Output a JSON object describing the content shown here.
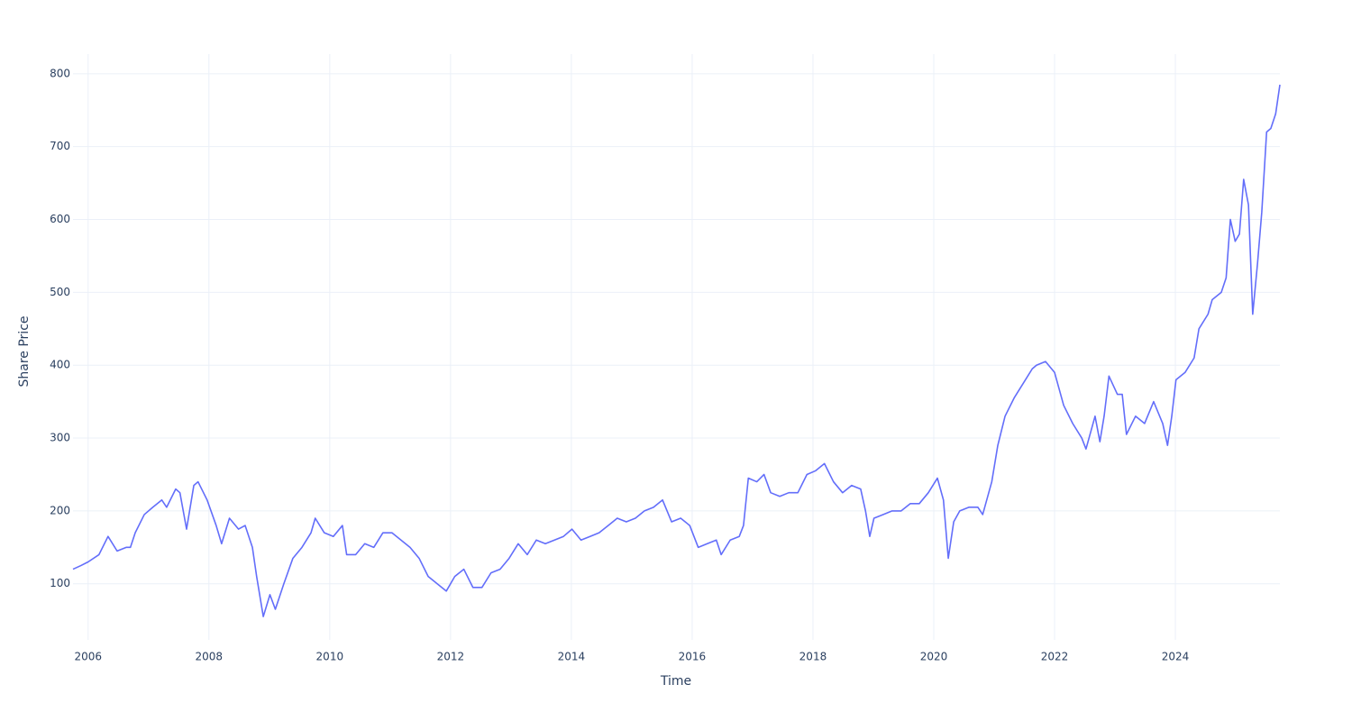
{
  "chart_data": {
    "type": "line",
    "x_label": "Time",
    "y_label": "Share Price",
    "xlim": [
      2005.75,
      2025.73
    ],
    "ylim": [
      23,
      827
    ],
    "xticks": [
      2006,
      2008,
      2010,
      2012,
      2014,
      2016,
      2018,
      2020,
      2022,
      2024
    ],
    "yticks": [
      100,
      200,
      300,
      400,
      500,
      600,
      700,
      800
    ],
    "grid": true,
    "x": [
      2005.75,
      2005.88,
      2006.0,
      2006.18,
      2006.33,
      2006.48,
      2006.63,
      2006.7,
      2006.78,
      2006.93,
      2007.07,
      2007.22,
      2007.3,
      2007.45,
      2007.52,
      2007.63,
      2007.75,
      2007.82,
      2007.97,
      2008.12,
      2008.21,
      2008.34,
      2008.49,
      2008.6,
      2008.72,
      2008.79,
      2008.9,
      2009.01,
      2009.1,
      2009.24,
      2009.39,
      2009.54,
      2009.69,
      2009.76,
      2009.91,
      2010.06,
      2010.21,
      2010.28,
      2010.43,
      2010.58,
      2010.73,
      2010.88,
      2011.03,
      2011.18,
      2011.33,
      2011.48,
      2011.63,
      2011.78,
      2011.93,
      2012.07,
      2012.22,
      2012.37,
      2012.52,
      2012.67,
      2012.82,
      2012.97,
      2013.12,
      2013.27,
      2013.42,
      2013.57,
      2013.72,
      2013.87,
      2014.01,
      2014.16,
      2014.31,
      2014.46,
      2014.61,
      2014.76,
      2014.91,
      2015.06,
      2015.21,
      2015.36,
      2015.51,
      2015.66,
      2015.81,
      2015.96,
      2016.1,
      2016.25,
      2016.4,
      2016.48,
      2016.63,
      2016.78,
      2016.85,
      2016.93,
      2017.07,
      2017.19,
      2017.3,
      2017.45,
      2017.6,
      2017.75,
      2017.9,
      2018.04,
      2018.19,
      2018.34,
      2018.49,
      2018.64,
      2018.79,
      2018.87,
      2018.94,
      2019.01,
      2019.16,
      2019.31,
      2019.46,
      2019.61,
      2019.76,
      2019.91,
      2020.06,
      2020.16,
      2020.24,
      2020.33,
      2020.43,
      2020.58,
      2020.73,
      2020.81,
      2020.96,
      2021.06,
      2021.18,
      2021.33,
      2021.48,
      2021.63,
      2021.7,
      2021.85,
      2022.0,
      2022.15,
      2022.3,
      2022.45,
      2022.52,
      2022.67,
      2022.75,
      2022.82,
      2022.9,
      2023.04,
      2023.12,
      2023.19,
      2023.34,
      2023.49,
      2023.64,
      2023.79,
      2023.87,
      2023.94,
      2024.01,
      2024.16,
      2024.31,
      2024.39,
      2024.54,
      2024.61,
      2024.76,
      2024.84,
      2024.91,
      2024.99,
      2025.06,
      2025.13,
      2025.21,
      2025.28,
      2025.36,
      2025.43,
      2025.51,
      2025.58,
      2025.66,
      2025.73
    ],
    "series": [
      {
        "color": "#636efa",
        "values": [
          120,
          125,
          130,
          140,
          165,
          145,
          150,
          150,
          170,
          195,
          205,
          215,
          205,
          230,
          225,
          175,
          235,
          240,
          215,
          180,
          155,
          190,
          175,
          180,
          150,
          110,
          55,
          85,
          65,
          100,
          135,
          150,
          170,
          190,
          170,
          165,
          180,
          140,
          140,
          155,
          150,
          170,
          170,
          160,
          150,
          135,
          110,
          100,
          90,
          110,
          120,
          95,
          95,
          115,
          120,
          135,
          155,
          140,
          160,
          155,
          160,
          165,
          175,
          160,
          165,
          170,
          180,
          190,
          185,
          190,
          200,
          205,
          215,
          185,
          190,
          180,
          150,
          155,
          160,
          140,
          160,
          165,
          180,
          245,
          240,
          250,
          225,
          220,
          225,
          225,
          250,
          255,
          265,
          240,
          225,
          235,
          230,
          200,
          165,
          190,
          195,
          200,
          200,
          210,
          210,
          225,
          245,
          215,
          135,
          185,
          200,
          205,
          205,
          195,
          240,
          290,
          330,
          355,
          375,
          395,
          400,
          405,
          390,
          345,
          320,
          300,
          285,
          330,
          295,
          330,
          385,
          360,
          360,
          305,
          330,
          320,
          350,
          320,
          290,
          330,
          380,
          390,
          410,
          450,
          470,
          490,
          500,
          520,
          600,
          570,
          580,
          655,
          620,
          470,
          540,
          610,
          720,
          725,
          745,
          785
        ]
      }
    ]
  }
}
